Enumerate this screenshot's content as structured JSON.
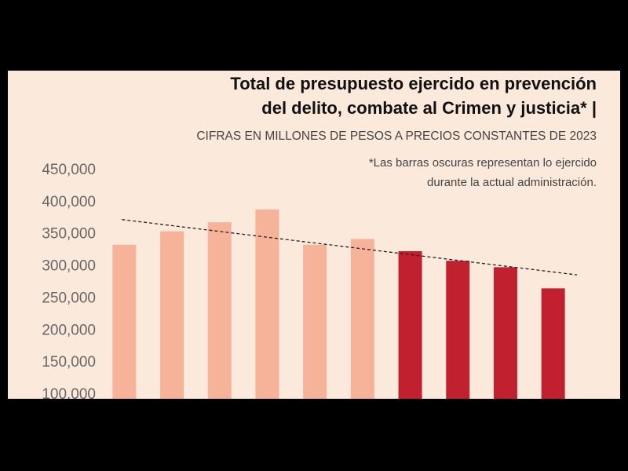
{
  "chart_data": {
    "type": "bar",
    "title": [
      "Total de presupuesto ejercido en prevención",
      "del delito, combate al Crimen y justicia* |"
    ],
    "subtitle": "CIFRAS EN MILLONES DE PESOS A PRECIOS CONSTANTES DE 2023",
    "note": [
      "*Las barras oscuras representan lo ejercido",
      "durante la actual administración."
    ],
    "categories": [
      null,
      null,
      null,
      null,
      null,
      null,
      null,
      null,
      null,
      null
    ],
    "values": [
      334000,
      355000,
      369000,
      389000,
      334000,
      343000,
      324000,
      309000,
      299000,
      266000
    ],
    "colors": [
      "#f6b39a",
      "#f6b39a",
      "#f6b39a",
      "#f6b39a",
      "#f6b39a",
      "#f6b39a",
      "#c1202f",
      "#c1202f",
      "#c1202f",
      "#c1202f"
    ],
    "ylim": [
      100000,
      450000
    ],
    "yticks": [
      {
        "value": 100000,
        "label": "100,000"
      },
      {
        "value": 150000,
        "label": "150,000"
      },
      {
        "value": 200000,
        "label": "200,000"
      },
      {
        "value": 250000,
        "label": "250,000"
      },
      {
        "value": 300000,
        "label": "300,000"
      },
      {
        "value": 350000,
        "label": "350,000"
      },
      {
        "value": 400000,
        "label": "400,000"
      },
      {
        "value": 450000,
        "label": "450,000"
      }
    ],
    "trendline": true
  }
}
